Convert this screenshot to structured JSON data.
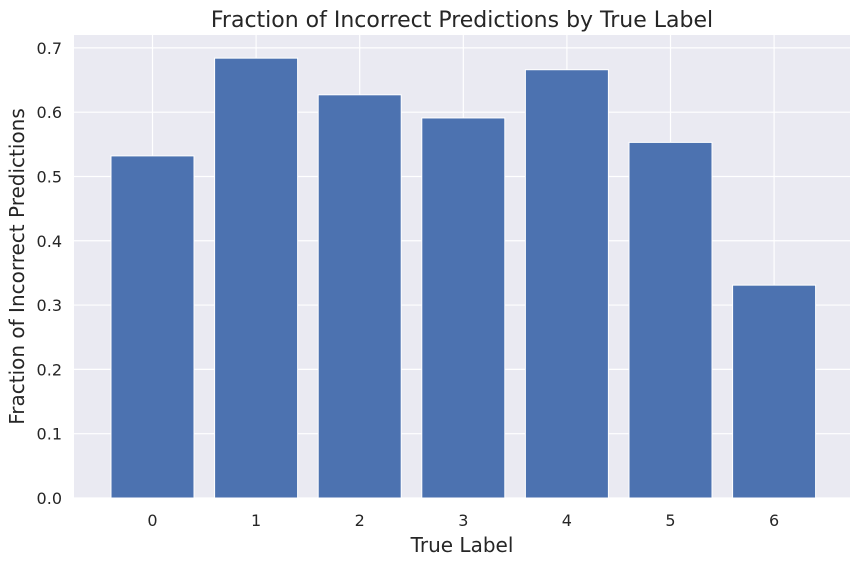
{
  "chart_data": {
    "type": "bar",
    "title": "Fraction of Incorrect Predictions by True Label",
    "xlabel": "True Label",
    "ylabel": "Fraction of Incorrect Predictions",
    "categories": [
      "0",
      "1",
      "2",
      "3",
      "4",
      "5",
      "6"
    ],
    "values": [
      0.532,
      0.684,
      0.627,
      0.591,
      0.666,
      0.553,
      0.331
    ],
    "ylim": [
      0,
      0.72
    ],
    "yticks": [
      0.0,
      0.1,
      0.2,
      0.3,
      0.4,
      0.5,
      0.6,
      0.7
    ],
    "ytick_labels": [
      "0.0",
      "0.1",
      "0.2",
      "0.3",
      "0.4",
      "0.5",
      "0.6",
      "0.7"
    ],
    "grid": true,
    "colors": {
      "bar": "#4c72b0",
      "plot_background": "#eaeaf2",
      "grid": "#ffffff"
    }
  }
}
